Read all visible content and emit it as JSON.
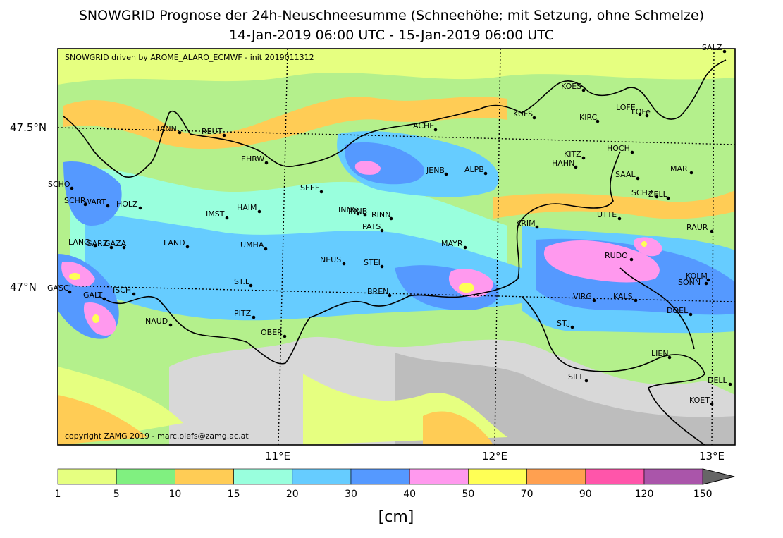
{
  "title_line1": "SNOWGRID Prognose der 24h-Neuschneesumme (Schneehöhe; mit Setzung, ohne Schmelze)",
  "title_line2": "14-Jan-2019 06:00 UTC - 15-Jan-2019 06:00 UTC",
  "map_note_top": "SNOWGRID driven by AROME_ALARO_ECMWF - init 2019011312",
  "map_note_bottom": "copyright ZAMG 2019 - marc.olefs@zamg.ac.at",
  "lon_labels": [
    {
      "lon": 11,
      "text": "11°E"
    },
    {
      "lon": 12,
      "text": "12°E"
    },
    {
      "lon": 13,
      "text": "13°E"
    }
  ],
  "lat_labels": [
    {
      "lat": 47.5,
      "text": "47.5°N"
    },
    {
      "lat": 47.0,
      "text": "47°N"
    }
  ],
  "legend": {
    "unit": "[cm]",
    "ticks": [
      "1",
      "5",
      "10",
      "15",
      "20",
      "30",
      "40",
      "50",
      "70",
      "90",
      "120",
      "150"
    ],
    "colors": [
      "#e6ff80",
      "#80f080",
      "#ffcc55",
      "#99ffdd",
      "#66ccff",
      "#5599ff",
      "#ff99ee",
      "#ffff55",
      "#ffa050",
      "#ff55aa",
      "#aa55aa"
    ],
    "extend_color": "#666666"
  },
  "stations": [
    "SALZ",
    "KOES",
    "KUFS",
    "LOFE",
    "LOFe",
    "KIRC",
    "ACHE",
    "TANN",
    "REUT",
    "HOCH",
    "KITZ",
    "HAHN",
    "EHRW",
    "JENB",
    "ALPB",
    "MAR",
    "SAAL",
    "SCHO",
    "SEEF",
    "SCHZ",
    "ZELL",
    "SCHR",
    "WART",
    "HOLZ",
    "INNS",
    "INNB",
    "HAIM",
    "IMST",
    "RINN",
    "UTTE",
    "PATS",
    "KRIM",
    "RAUR",
    "LANG",
    "GARZ",
    "GAZA",
    "LAND",
    "UMHA",
    "MAYR",
    "RUDO",
    "NEUS",
    "STEI",
    "KOLM",
    "SONN",
    "GASC",
    "GALT",
    "ISCH",
    "BREN",
    "ST.L",
    "VIRG",
    "KALS",
    "PITZ",
    "DOEL",
    "NAUD",
    "ST.J",
    "OBER",
    "LIEN",
    "SILL",
    "DELL",
    "KOET"
  ]
}
